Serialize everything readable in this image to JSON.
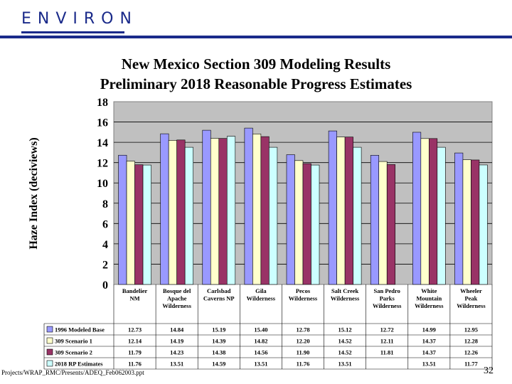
{
  "logo_text": "ENVIRON",
  "chart_data": {
    "type": "bar",
    "title": "New Mexico Section 309 Modeling Results",
    "subtitle": "Preliminary 2018 Reasonable Progress Estimates",
    "ylabel": "Haze Index (deciviews)",
    "xlabel": "",
    "ylim": [
      0,
      18
    ],
    "yticks": [
      0,
      2,
      4,
      6,
      8,
      10,
      12,
      14,
      16,
      18
    ],
    "grid": true,
    "categories": [
      "Bandelier NM",
      "Bosque del Apache Wilderness",
      "Carlsbad Caverns NP",
      "Gila Wilderness",
      "Pecos Wilderness",
      "Salt Creek Wilderness",
      "San Pedro Parks Wilderness",
      "White Mountain Wilderness",
      "Wheeler Peak Wilderness"
    ],
    "category_lines": [
      [
        "Bandelier",
        "NM"
      ],
      [
        "Bosque del",
        "Apache",
        "Wilderness"
      ],
      [
        "Carlsbad",
        "Caverns NP"
      ],
      [
        "Gila",
        "Wilderness"
      ],
      [
        "Pecos",
        "Wilderness"
      ],
      [
        "Salt Creek",
        "Wilderness"
      ],
      [
        "San Pedro",
        "Parks",
        "Wilderness"
      ],
      [
        "White",
        "Mountain",
        "Wilderness"
      ],
      [
        "Wheeler",
        "Peak",
        "Wilderness"
      ]
    ],
    "series": [
      {
        "name": "1996 Modeled Base",
        "color": "#9999ff",
        "values": [
          12.73,
          14.84,
          15.19,
          15.4,
          12.78,
          15.12,
          12.72,
          14.99,
          12.95
        ],
        "labels": [
          "12.73",
          "14.84",
          "15.19",
          "15.40",
          "12.78",
          "15.12",
          "12.72",
          "14.99",
          "12.95"
        ]
      },
      {
        "name": "309 Scenario 1",
        "color": "#ffffcc",
        "values": [
          12.14,
          14.19,
          14.39,
          14.82,
          12.2,
          14.52,
          12.11,
          14.37,
          12.28
        ],
        "labels": [
          "12.14",
          "14.19",
          "14.39",
          "14.82",
          "12.20",
          "14.52",
          "12.11",
          "14.37",
          "12.28"
        ]
      },
      {
        "name": "309 Scenario 2",
        "color": "#993366",
        "values": [
          11.79,
          14.23,
          14.38,
          14.56,
          11.9,
          14.52,
          11.81,
          14.37,
          12.26
        ],
        "labels": [
          "11.79",
          "14.23",
          "14.38",
          "14.56",
          "11.90",
          "14.52",
          "11.81",
          "14.37",
          "12.26"
        ]
      },
      {
        "name": "2018 RP Estimates",
        "color": "#ccffff",
        "values": [
          11.76,
          13.51,
          14.59,
          13.51,
          11.76,
          13.51,
          null,
          13.51,
          11.77
        ],
        "labels": [
          "11.76",
          "13.51",
          "14.59",
          "13.51",
          "11.76",
          "13.51",
          "",
          "13.51",
          "11.77"
        ]
      }
    ]
  },
  "footer_path": "Projects/WRAP_RMC/Presents/ADEQ_Feb062003.ppt",
  "page_number": "32"
}
